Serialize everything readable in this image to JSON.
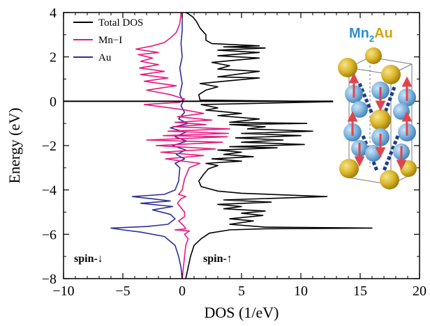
{
  "chart_data": {
    "type": "line",
    "xlabel": "DOS  (1/eV)",
    "ylabel": "Energy  (eV)",
    "xlim": [
      -10,
      20
    ],
    "ylim": [
      -8,
      4
    ],
    "xticks": [
      -10,
      -5,
      0,
      5,
      10,
      15,
      20
    ],
    "yticks": [
      -8,
      -6,
      -4,
      -2,
      0,
      2,
      4
    ],
    "legend_position": "top-left",
    "fermi_level": 0,
    "series": [
      {
        "name": "Total DOS",
        "color": "#000000",
        "points": [
          [
            0.3,
            -8.0
          ],
          [
            0.5,
            -7.5
          ],
          [
            0.7,
            -7.0
          ],
          [
            1.0,
            -6.5
          ],
          [
            1.6,
            -6.2
          ],
          [
            2.3,
            -5.95
          ],
          [
            4.0,
            -5.8
          ],
          [
            7.0,
            -5.75
          ],
          [
            16.0,
            -5.72
          ],
          [
            7.0,
            -5.68
          ],
          [
            4.0,
            -5.55
          ],
          [
            6.0,
            -5.4
          ],
          [
            4.0,
            -5.3
          ],
          [
            6.8,
            -5.15
          ],
          [
            5.0,
            -5.05
          ],
          [
            7.0,
            -4.95
          ],
          [
            3.5,
            -4.85
          ],
          [
            5.0,
            -4.75
          ],
          [
            3.0,
            -4.65
          ],
          [
            7.5,
            -4.55
          ],
          [
            3.5,
            -4.45
          ],
          [
            12.2,
            -4.3
          ],
          [
            5.0,
            -4.15
          ],
          [
            3.0,
            -4.05
          ],
          [
            1.6,
            -3.85
          ],
          [
            1.4,
            -3.6
          ],
          [
            1.8,
            -3.3
          ],
          [
            2.2,
            -3.05
          ],
          [
            3.0,
            -2.9
          ],
          [
            2.0,
            -2.8
          ],
          [
            5.0,
            -2.7
          ],
          [
            2.5,
            -2.6
          ],
          [
            6.0,
            -2.5
          ],
          [
            3.5,
            -2.4
          ],
          [
            5.0,
            -2.3
          ],
          [
            3.0,
            -2.2
          ],
          [
            8.0,
            -2.1
          ],
          [
            4.0,
            -2.05
          ],
          [
            10.3,
            -1.95
          ],
          [
            5.0,
            -1.85
          ],
          [
            8.5,
            -1.75
          ],
          [
            4.5,
            -1.65
          ],
          [
            10.0,
            -1.55
          ],
          [
            5.0,
            -1.45
          ],
          [
            11.0,
            -1.35
          ],
          [
            5.5,
            -1.25
          ],
          [
            7.0,
            -1.15
          ],
          [
            4.0,
            -1.05
          ],
          [
            10.5,
            -1.0
          ],
          [
            4.0,
            -0.95
          ],
          [
            6.5,
            -0.8
          ],
          [
            3.0,
            -0.65
          ],
          [
            5.0,
            -0.55
          ],
          [
            2.0,
            -0.4
          ],
          [
            3.0,
            -0.3
          ],
          [
            1.6,
            -0.15
          ],
          [
            12.7,
            -0.02
          ],
          [
            1.5,
            0.05
          ],
          [
            1.4,
            0.3
          ],
          [
            2.0,
            0.5
          ],
          [
            3.0,
            0.65
          ],
          [
            1.5,
            0.8
          ],
          [
            4.5,
            0.95
          ],
          [
            6.5,
            1.05
          ],
          [
            3.0,
            1.1
          ],
          [
            6.5,
            1.35
          ],
          [
            3.0,
            1.45
          ],
          [
            4.0,
            1.6
          ],
          [
            2.5,
            1.75
          ],
          [
            6.5,
            1.95
          ],
          [
            3.0,
            2.05
          ],
          [
            6.5,
            2.2
          ],
          [
            3.0,
            2.3
          ],
          [
            7.0,
            2.4
          ],
          [
            3.5,
            2.45
          ],
          [
            6.5,
            2.5
          ],
          [
            2.5,
            2.6
          ],
          [
            2.0,
            2.75
          ],
          [
            2.0,
            3.0
          ],
          [
            1.5,
            3.3
          ],
          [
            1.2,
            3.6
          ],
          [
            0.9,
            3.8
          ],
          [
            0.5,
            3.95
          ],
          [
            0.3,
            4.0
          ]
        ]
      },
      {
        "name": "Mn−I",
        "color": "#e6197f",
        "points": [
          [
            0.0,
            -8.0
          ],
          [
            0.1,
            -7.5
          ],
          [
            0.2,
            -7.0
          ],
          [
            0.3,
            -6.5
          ],
          [
            0.5,
            -6.2
          ],
          [
            0.2,
            -6.0
          ],
          [
            0.6,
            -5.85
          ],
          [
            -0.6,
            -5.8
          ],
          [
            0.3,
            -5.75
          ],
          [
            0.1,
            -5.6
          ],
          [
            -0.3,
            -5.4
          ],
          [
            0.2,
            -5.2
          ],
          [
            0.2,
            -5.0
          ],
          [
            -0.4,
            -4.6
          ],
          [
            -0.1,
            -4.4
          ],
          [
            0.3,
            -4.3
          ],
          [
            -0.3,
            -4.2
          ],
          [
            0.0,
            -4.0
          ],
          [
            0.2,
            -3.5
          ],
          [
            0.6,
            -3.0
          ],
          [
            1.5,
            -2.8
          ],
          [
            -1.4,
            -2.6
          ],
          [
            1.8,
            -2.45
          ],
          [
            -1.8,
            -2.3
          ],
          [
            2.8,
            -2.15
          ],
          [
            -2.2,
            -2.0
          ],
          [
            3.4,
            -1.85
          ],
          [
            -3.0,
            -1.75
          ],
          [
            3.8,
            -1.6
          ],
          [
            -1.6,
            -1.55
          ],
          [
            3.9,
            -1.45
          ],
          [
            -1.2,
            -1.35
          ],
          [
            4.0,
            -1.25
          ],
          [
            -0.8,
            -1.15
          ],
          [
            2.0,
            -1.05
          ],
          [
            -0.6,
            -0.95
          ],
          [
            2.5,
            -0.85
          ],
          [
            -0.4,
            -0.7
          ],
          [
            1.8,
            -0.55
          ],
          [
            0.3,
            -0.4
          ],
          [
            -1.0,
            -0.3
          ],
          [
            -3.2,
            -0.15
          ],
          [
            -0.2,
            -0.05
          ],
          [
            0.2,
            0.1
          ],
          [
            -1.0,
            0.3
          ],
          [
            -3.0,
            0.5
          ],
          [
            -0.5,
            0.7
          ],
          [
            -3.2,
            0.9
          ],
          [
            -1.2,
            1.05
          ],
          [
            -3.5,
            1.2
          ],
          [
            -1.5,
            1.35
          ],
          [
            -3.6,
            1.5
          ],
          [
            -2.0,
            1.65
          ],
          [
            -3.5,
            1.8
          ],
          [
            -2.5,
            1.95
          ],
          [
            -3.7,
            2.1
          ],
          [
            -2.0,
            2.2
          ],
          [
            -3.9,
            2.35
          ],
          [
            -2.5,
            2.5
          ],
          [
            -1.5,
            2.65
          ],
          [
            -1.0,
            2.85
          ],
          [
            -0.5,
            3.1
          ],
          [
            -0.2,
            3.5
          ],
          [
            -0.1,
            4.0
          ]
        ]
      },
      {
        "name": "Au",
        "color": "#2b2f9e",
        "points": [
          [
            0.0,
            -8.0
          ],
          [
            -0.1,
            -7.5
          ],
          [
            -0.3,
            -7.0
          ],
          [
            -0.6,
            -6.5
          ],
          [
            -1.5,
            -6.1
          ],
          [
            -3.5,
            -5.9
          ],
          [
            -5.0,
            -5.8
          ],
          [
            -6.0,
            -5.72
          ],
          [
            -3.0,
            -5.65
          ],
          [
            -1.2,
            -5.55
          ],
          [
            -0.6,
            -5.3
          ],
          [
            -1.0,
            -5.1
          ],
          [
            -2.5,
            -4.9
          ],
          [
            -0.8,
            -4.75
          ],
          [
            -3.5,
            -4.6
          ],
          [
            -1.0,
            -4.5
          ],
          [
            -2.5,
            -4.4
          ],
          [
            -4.2,
            -4.3
          ],
          [
            -1.5,
            -4.2
          ],
          [
            -0.6,
            -4.0
          ],
          [
            -0.3,
            -3.6
          ],
          [
            -0.2,
            -3.0
          ],
          [
            -0.6,
            -2.8
          ],
          [
            0.2,
            -2.6
          ],
          [
            -0.5,
            -2.4
          ],
          [
            0.3,
            -2.2
          ],
          [
            -0.8,
            -2.0
          ],
          [
            0.4,
            -1.8
          ],
          [
            -0.6,
            -1.6
          ],
          [
            0.3,
            -1.4
          ],
          [
            -1.0,
            -1.2
          ],
          [
            0.5,
            -1.0
          ],
          [
            -0.3,
            -0.8
          ],
          [
            0.2,
            -0.5
          ],
          [
            -0.1,
            -0.2
          ],
          [
            0.1,
            0.0
          ],
          [
            -0.2,
            0.3
          ],
          [
            0.0,
            0.8
          ],
          [
            -0.2,
            1.5
          ],
          [
            0.0,
            2.0
          ],
          [
            -0.1,
            2.6
          ],
          [
            0.0,
            3.2
          ],
          [
            0.0,
            4.0
          ]
        ]
      }
    ],
    "mirror_series_for_spin": true,
    "annotations": {
      "spin_down": "spin-↓",
      "spin_up": "spin-↑"
    },
    "inset": {
      "formula_base_1": "Mn",
      "formula_sub": "2",
      "formula_base_2": "Au",
      "colors": {
        "mn": "#2f8fd0",
        "au": "#d4a20e",
        "mn_sphere": "#7fb3dd",
        "au_sphere": "#d9b52a",
        "arrow": "#e0454f",
        "bond": "#1d3b8c"
      }
    }
  }
}
